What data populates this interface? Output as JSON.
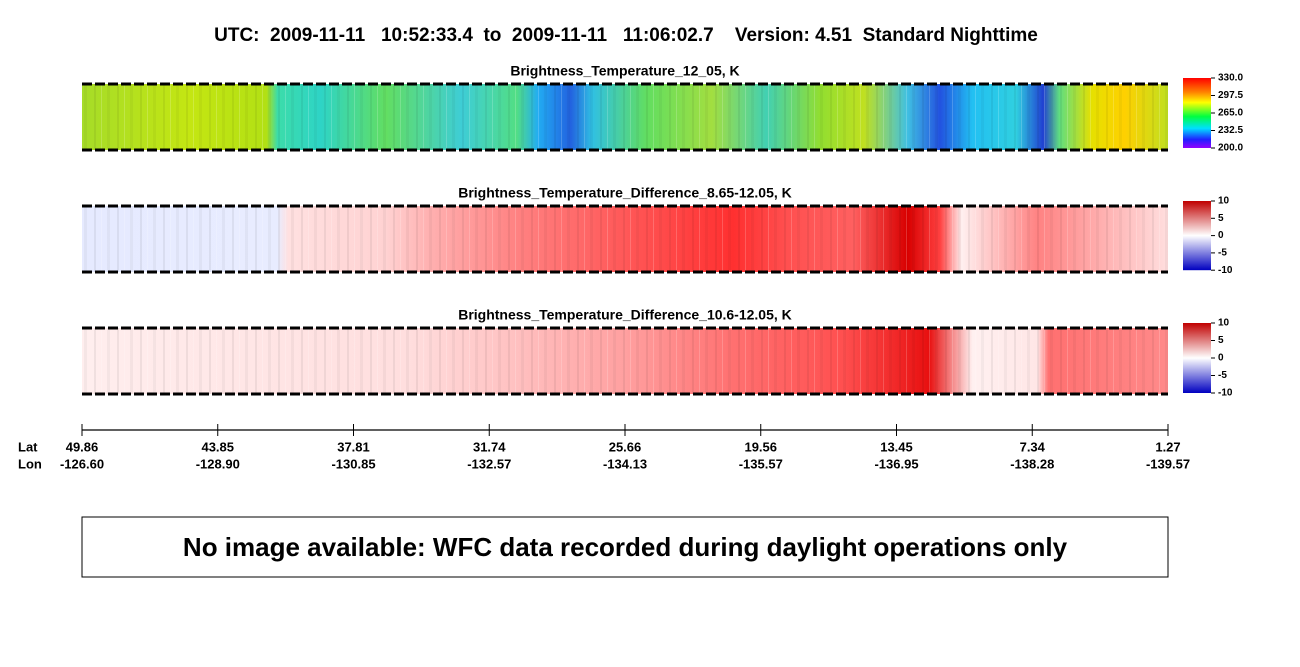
{
  "title": "UTC:  2009-11-11   10:52:33.4  to  2009-11-11   11:06:02.7    Version: 4.51  Standard Nighttime",
  "panels": [
    {
      "title": "Brightness_Temperature_12_05, K",
      "colorbar": [
        "330.0",
        "297.5",
        "265.0",
        "232.5",
        "200.0"
      ]
    },
    {
      "title": "Brightness_Temperature_Difference_8.65-12.05, K",
      "colorbar": [
        "10",
        "5",
        "0",
        "-5",
        "-10"
      ]
    },
    {
      "title": "Brightness_Temperature_Difference_10.6-12.05, K",
      "colorbar": [
        "10",
        "5",
        "0",
        "-5",
        "-10"
      ]
    }
  ],
  "axis": {
    "lat_label": "Lat",
    "lon_label": "Lon",
    "lat": [
      "49.86",
      "43.85",
      "37.81",
      "31.74",
      "25.66",
      "19.56",
      "13.45",
      "7.34",
      "1.27"
    ],
    "lon": [
      "-126.60",
      "-128.90",
      "-130.85",
      "-132.57",
      "-134.13",
      "-135.57",
      "-136.95",
      "-138.28",
      "-139.57"
    ]
  },
  "message": "No image available: WFC data recorded during daylight operations only"
}
